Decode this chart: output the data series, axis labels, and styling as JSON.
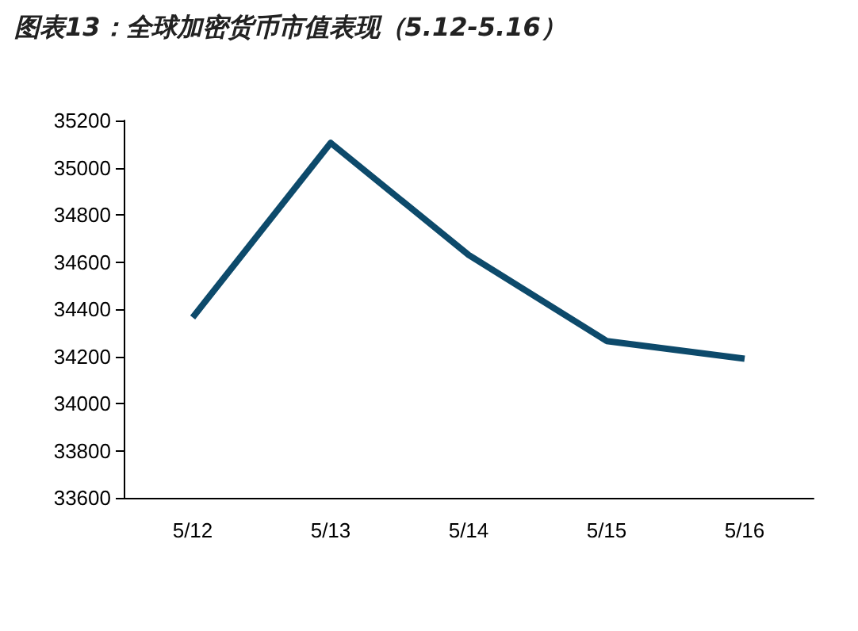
{
  "chart_data": {
    "type": "line",
    "title": "图表13：全球加密货币市值表现（5.12-5.16）",
    "categories": [
      "5/12",
      "5/13",
      "5/14",
      "5/15",
      "5/16"
    ],
    "series": [
      {
        "color": "#0d4a6b",
        "values": [
          34365,
          35105,
          34630,
          34265,
          34190
        ]
      }
    ],
    "ylim": [
      33600,
      35200
    ],
    "yticks": [
      33600,
      33800,
      34000,
      34200,
      34400,
      34600,
      34800,
      35000,
      35200
    ],
    "grid": false,
    "marker": "none",
    "line_style": "solid"
  }
}
